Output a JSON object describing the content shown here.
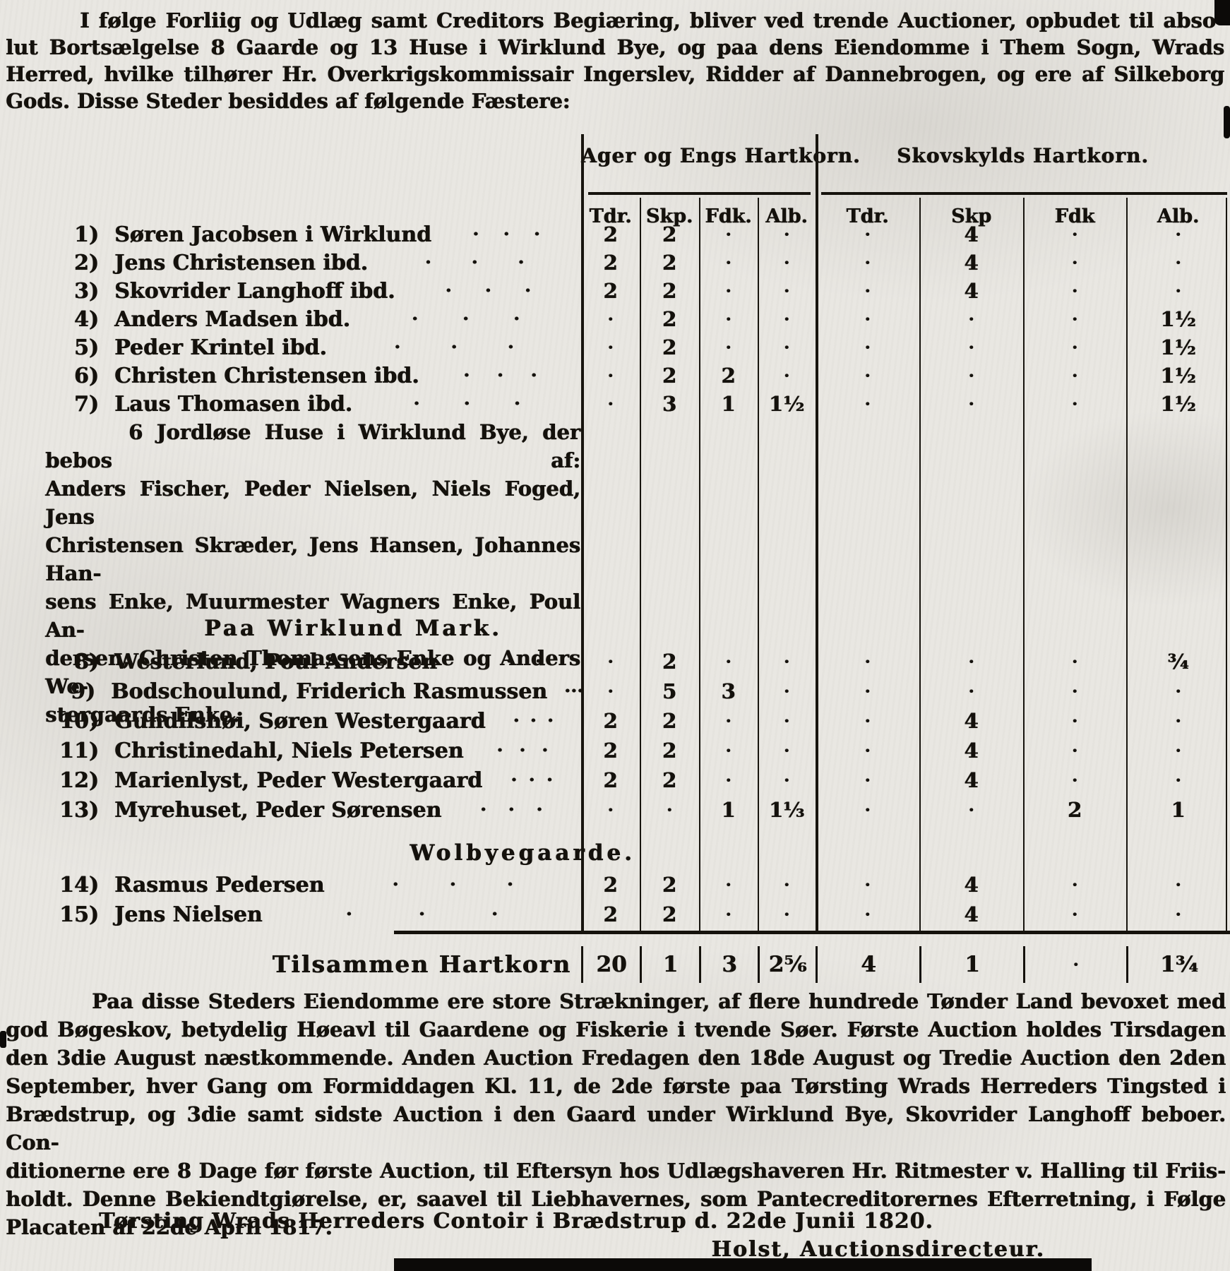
{
  "colors": {
    "paper": "#e9e7e2",
    "ink": "#14110c"
  },
  "doc": {
    "intro_lines": [
      "I følge Forliig og Udlæg samt Creditors Begiæring, bliver ved trende Auctioner, opbudet til abso-",
      "lut Bortsælgelse 8 Gaarde og 13 Huse i Wirklund Bye, og paa dens Eiendomme i Them Sogn, Wrads",
      "Herred, hvilke tilhører Hr. Overkrigskommissair Ingerslev, Ridder af Dannebrogen, og ere af Silkeborg",
      "Gods. Disse Steder besiddes af følgende Fæstere:"
    ],
    "table": {
      "group_headers": [
        "Ager og Engs Hartkorn.",
        "Skovskylds Hartkorn."
      ],
      "col_headers": [
        "Tdr.",
        "Skp.",
        "Fdk.",
        "Alb.",
        "Tdr.",
        "Skp",
        "Fdk",
        "Alb."
      ],
      "rows_wirklund_bye": [
        {
          "num": "1)",
          "name": "Søren Jacobsen i Wirklund",
          "values": [
            "2",
            "2",
            "·",
            "·",
            "·",
            "4",
            "·",
            "·"
          ]
        },
        {
          "num": "2)",
          "name": "Jens Christensen ibd.",
          "values": [
            "2",
            "2",
            "·",
            "·",
            "·",
            "4",
            "·",
            "·"
          ]
        },
        {
          "num": "3)",
          "name": "Skovrider Langhoff ibd.",
          "values": [
            "2",
            "2",
            "·",
            "·",
            "·",
            "4",
            "·",
            "·"
          ]
        },
        {
          "num": "4)",
          "name": "Anders Madsen ibd.",
          "values": [
            "·",
            "2",
            "·",
            "·",
            "·",
            "·",
            "·",
            "1½"
          ]
        },
        {
          "num": "5)",
          "name": "Peder Krintel ibd.",
          "values": [
            "·",
            "2",
            "·",
            "·",
            "·",
            "·",
            "·",
            "1½"
          ]
        },
        {
          "num": "6)",
          "name": "Christen Christensen ibd.",
          "values": [
            "·",
            "2",
            "2",
            "·",
            "·",
            "·",
            "·",
            "1½"
          ]
        },
        {
          "num": "7)",
          "name": "Laus Thomasen ibd.",
          "values": [
            "·",
            "3",
            "1",
            "1½",
            "·",
            "·",
            "·",
            "1½"
          ]
        }
      ],
      "note_lines": [
        "6 Jordløse Huse i Wirklund Bye, der bebos af:",
        "Anders Fischer, Peder Nielsen, Niels Foged, Jens",
        "Christensen Skræder, Jens Hansen, Johannes Han-",
        "sens Enke, Muurmester Wagners Enke, Poul An-",
        "dersen, Christen Thomassens Enke og Anders We-",
        "stergaards Enke."
      ],
      "section_wirklund_mark": "Paa Wirklund Mark.",
      "rows_wirklund_mark": [
        {
          "num": "8)",
          "name": "Westerlund, Poul Andersen",
          "values": [
            "·",
            "2",
            "·",
            "·",
            "·",
            "·",
            "·",
            "¾"
          ]
        },
        {
          "num": "9)",
          "name": "Bodschoulund, Friderich Rasmussen",
          "values": [
            "·",
            "5",
            "3",
            "·",
            "·",
            "·",
            "·",
            "·"
          ]
        },
        {
          "num": "10)",
          "name": "Gundilshøi, Søren Westergaard",
          "values": [
            "2",
            "2",
            "·",
            "·",
            "·",
            "4",
            "·",
            "·"
          ]
        },
        {
          "num": "11)",
          "name": "Christinedahl, Niels Petersen",
          "values": [
            "2",
            "2",
            "·",
            "·",
            "·",
            "4",
            "·",
            "·"
          ]
        },
        {
          "num": "12)",
          "name": "Marienlyst, Peder Westergaard",
          "values": [
            "2",
            "2",
            "·",
            "·",
            "·",
            "4",
            "·",
            "·"
          ]
        },
        {
          "num": "13)",
          "name": "Myrehuset, Peder Sørensen",
          "values": [
            "·",
            "·",
            "1",
            "1⅓",
            "·",
            "·",
            "2",
            "1"
          ]
        }
      ],
      "section_wolbye": "Wolbyegaarde.",
      "rows_wolbye": [
        {
          "num": "14)",
          "name": "Rasmus Pedersen",
          "values": [
            "2",
            "2",
            "·",
            "·",
            "·",
            "4",
            "·",
            "·"
          ]
        },
        {
          "num": "15)",
          "name": "Jens Nielsen",
          "values": [
            "2",
            "2",
            "·",
            "·",
            "·",
            "4",
            "·",
            "·"
          ]
        }
      ],
      "total_label": "Tilsammen Hartkorn",
      "total_values": [
        "20",
        "1",
        "3",
        "2⅚",
        "4",
        "1",
        "·",
        "1¾"
      ]
    },
    "outro_lines": [
      "Paa disse Steders Eiendomme ere store Strækninger, af flere hundrede Tønder Land bevoxet med",
      "god Bøgeskov, betydelig Høeavl til Gaardene og Fiskerie i tvende Søer. Første Auction holdes Tirsdagen",
      "den 3die August næstkommende. Anden Auction Fredagen den 18de August og Tredie Auction den 2den",
      "September, hver Gang om Formiddagen Kl. 11, de 2de første paa Tørsting Wrads Herreders Tingsted i",
      "Brædstrup, og 3die samt sidste Auction i den Gaard under Wirklund Bye, Skovrider Langhoff beboer. Con-",
      "ditionerne ere 8 Dage før første Auction, til Eftersyn hos Udlægshaveren Hr. Ritmester v. Halling til Friis-",
      "holdt. Denne Bekiendtgiørelse, er, saavel til Liebhavernes, som Pantecreditorernes Efterretning, i Følge",
      "Placaten af 22de April 1817."
    ],
    "dateline": "Tørsting Wrads Herreders Contoir i Brædstrup d. 22de Junii 1820.",
    "signature": "Holst, Auctionsdirecteur."
  }
}
